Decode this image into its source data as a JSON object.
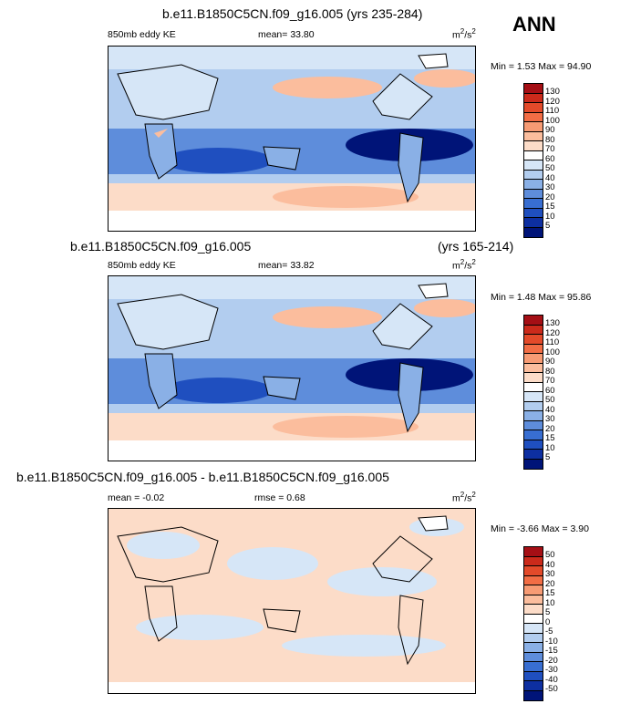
{
  "season": "ANN",
  "panels": [
    {
      "title": "b.e11.B1850C5CN.f09_g16.005 (yrs 235-284)",
      "left_label": "850mb eddy KE",
      "stat1": "mean=  33.80",
      "stat2": "",
      "units": "m",
      "units_sup": "2",
      "units_tail": "/s",
      "units_tail_sup": "2",
      "minmax": "Min =   1.53 Max =  94.90",
      "levels": [
        "130",
        "120",
        "110",
        "100",
        "90",
        "80",
        "70",
        "60",
        "50",
        "40",
        "30",
        "20",
        "15",
        "10",
        "5"
      ],
      "colors": [
        "#a50f15",
        "#cb2a1b",
        "#e34a2a",
        "#f26d45",
        "#f79b74",
        "#fbbd9d",
        "#fcdcc8",
        "#ffffff",
        "#d6e6f7",
        "#b2cdef",
        "#8ab0e6",
        "#5e8ddb",
        "#386ed1",
        "#1f4fbf",
        "#0d2fa1",
        "#001478"
      ]
    },
    {
      "title": "b.e11.B1850C5CN.f09_g16.005",
      "title_right": "(yrs 165-214)",
      "left_label": "850mb eddy KE",
      "stat1": "mean=  33.82",
      "stat2": "",
      "units": "m",
      "units_sup": "2",
      "units_tail": "/s",
      "units_tail_sup": "2",
      "minmax": "Min =   1.48 Max =  95.86",
      "levels": [
        "130",
        "120",
        "110",
        "100",
        "90",
        "80",
        "70",
        "60",
        "50",
        "40",
        "30",
        "20",
        "15",
        "10",
        "5"
      ],
      "colors": [
        "#a50f15",
        "#cb2a1b",
        "#e34a2a",
        "#f26d45",
        "#f79b74",
        "#fbbd9d",
        "#fcdcc8",
        "#ffffff",
        "#d6e6f7",
        "#b2cdef",
        "#8ab0e6",
        "#5e8ddb",
        "#386ed1",
        "#1f4fbf",
        "#0d2fa1",
        "#001478"
      ]
    },
    {
      "title": "b.e11.B1850C5CN.f09_g16.005 - b.e11.B1850C5CN.f09_g16.005",
      "left_label": "mean =  -0.02",
      "stat1": "",
      "stat2": "rmse =   0.68",
      "units": "m",
      "units_sup": "2",
      "units_tail": "/s",
      "units_tail_sup": "2",
      "minmax": "Min =  -3.66 Max =   3.90",
      "levels": [
        "50",
        "40",
        "30",
        "20",
        "15",
        "10",
        "5",
        "0",
        "-5",
        "-10",
        "-15",
        "-20",
        "-30",
        "-40",
        "-50"
      ],
      "colors": [
        "#a50f15",
        "#cb2a1b",
        "#e34a2a",
        "#f26d45",
        "#f79b74",
        "#fbbd9d",
        "#fcdcc8",
        "#ffffff",
        "#d6e6f7",
        "#b2cdef",
        "#8ab0e6",
        "#5e8ddb",
        "#386ed1",
        "#1f4fbf",
        "#0d2fa1",
        "#001478"
      ]
    }
  ],
  "chart_data": [
    {
      "type": "heatmap",
      "title": "b.e11.B1850C5CN.f09_g16.005 (yrs 235-284)",
      "variable": "850mb eddy KE",
      "units": "m2/s2",
      "mean": 33.8,
      "min": 1.53,
      "max": 94.9,
      "contour_levels": [
        5,
        10,
        15,
        20,
        30,
        40,
        50,
        60,
        70,
        80,
        90,
        100,
        110,
        120,
        130
      ]
    },
    {
      "type": "heatmap",
      "title": "b.e11.B1850C5CN.f09_g16.005 (yrs 165-214)",
      "variable": "850mb eddy KE",
      "units": "m2/s2",
      "mean": 33.82,
      "min": 1.48,
      "max": 95.86,
      "contour_levels": [
        5,
        10,
        15,
        20,
        30,
        40,
        50,
        60,
        70,
        80,
        90,
        100,
        110,
        120,
        130
      ]
    },
    {
      "type": "heatmap",
      "title": "b.e11.B1850C5CN.f09_g16.005 - b.e11.B1850C5CN.f09_g16.005",
      "units": "m2/s2",
      "mean": -0.02,
      "rmse": 0.68,
      "min": -3.66,
      "max": 3.9,
      "contour_levels": [
        -50,
        -40,
        -30,
        -20,
        -15,
        -10,
        -5,
        0,
        5,
        10,
        15,
        20,
        30,
        40,
        50
      ]
    }
  ]
}
